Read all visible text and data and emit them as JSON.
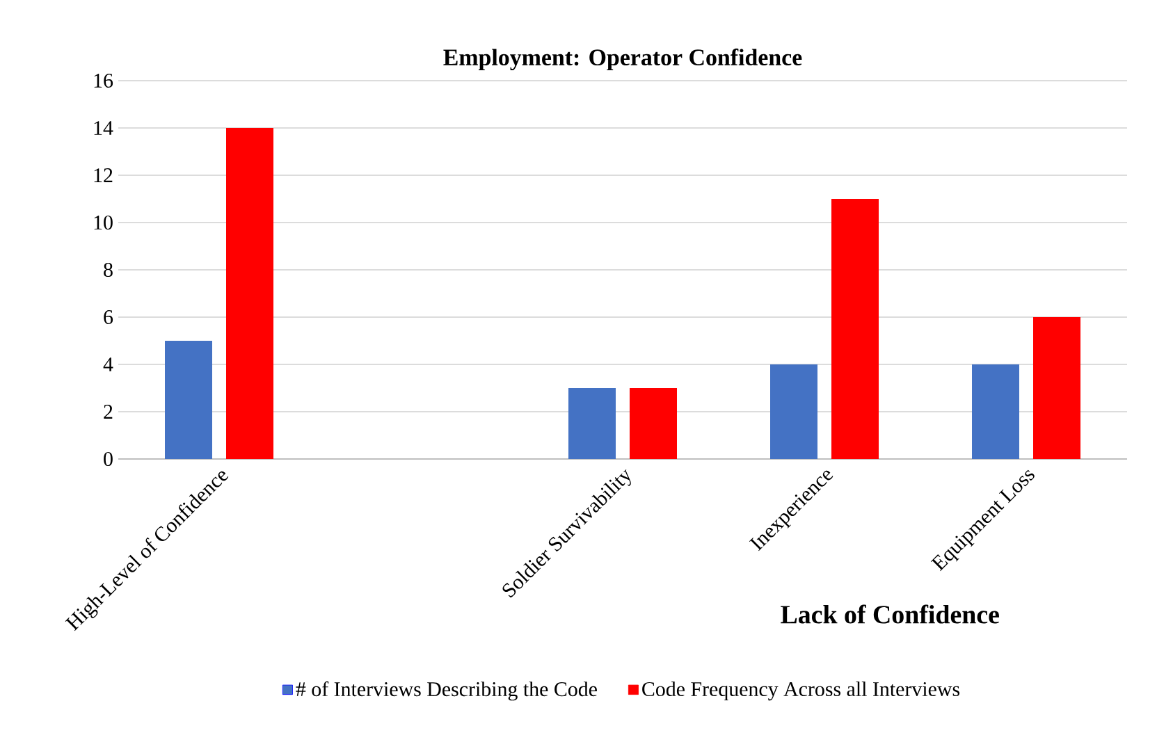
{
  "chart_data": {
    "type": "bar",
    "title": "Employment: Operator Confidence",
    "categories": [
      "High-Level of Confidence",
      null,
      "Soldier Survivability",
      "Inexperience",
      "Equipment Loss"
    ],
    "series": [
      {
        "name": "# of Interviews Describing the Code",
        "color": "#4472c4",
        "values": [
          5,
          null,
          3,
          4,
          4
        ]
      },
      {
        "name": "Code Frequency Across all Interviews",
        "color": "#ff0000",
        "values": [
          14,
          null,
          3,
          11,
          6
        ]
      }
    ],
    "annotations": [
      "Lack of Confidence"
    ],
    "ylim": [
      0,
      16
    ],
    "yticks": [
      0,
      2,
      4,
      6,
      8,
      10,
      12,
      14,
      16
    ],
    "grid": "y",
    "legend": "bottom"
  }
}
